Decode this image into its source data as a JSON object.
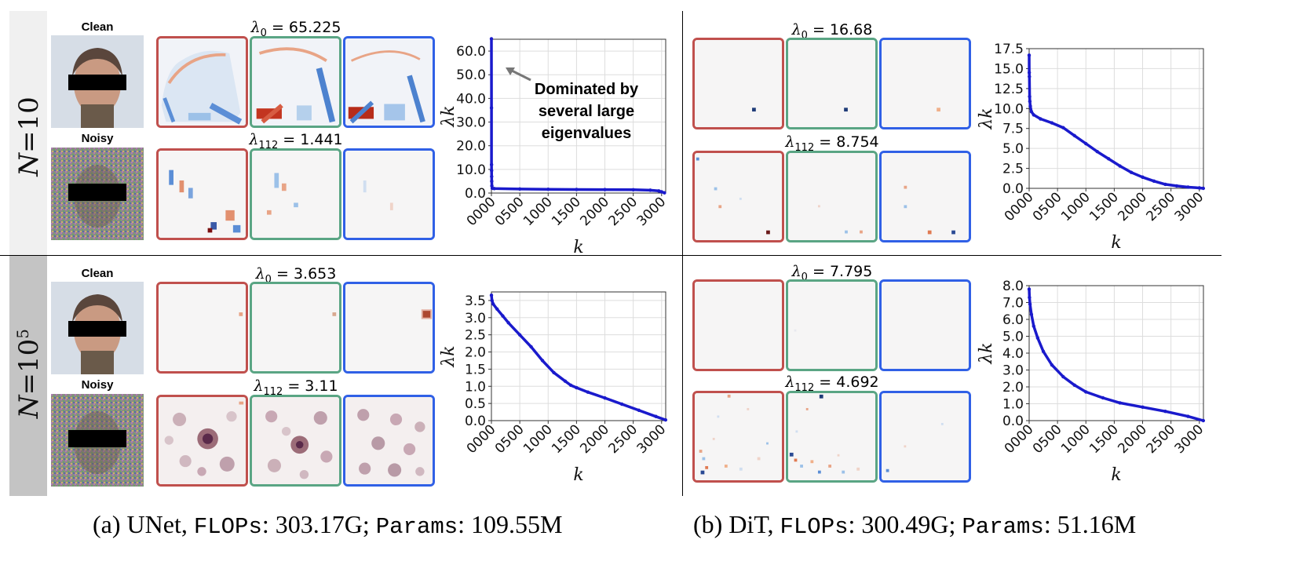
{
  "rows": [
    {
      "label_main": "N",
      "label_eq": "=10",
      "label_sup": ""
    },
    {
      "label_main": "N",
      "label_eq": "=10",
      "label_sup": "5"
    }
  ],
  "image_labels": {
    "clean": "Clean",
    "noisy": "Noisy"
  },
  "unet": {
    "n10": {
      "lambda0": "65.225",
      "lambda112": "1.441"
    },
    "n1e5": {
      "lambda0": "3.653",
      "lambda112": "3.11"
    }
  },
  "dit": {
    "n10": {
      "lambda0": "16.68",
      "lambda112": "8.754"
    },
    "n1e5": {
      "lambda0": "7.795",
      "lambda112": "4.692"
    }
  },
  "lambda_symbol": "λ",
  "lambda_sub0": "0",
  "lambda_sub112": "112",
  "annotation": {
    "line1": "Dominated by",
    "line2": "several large",
    "line3": "eigenvalues"
  },
  "captions": {
    "a_prefix": "(a) UNet, ",
    "a_flops_key": "FLOPs",
    "a_flops_val": ": 303.17G; ",
    "a_params_key": "Params",
    "a_params_val": ": 109.55M",
    "b_prefix": "(b) DiT, ",
    "b_flops_key": "FLOPs",
    "b_flops_val": ": 300.49G; ",
    "b_params_key": "Params",
    "b_params_val": ": 51.16M"
  },
  "colors": {
    "series": "#1a1acc",
    "border_red": "#c0504d",
    "border_green": "#5aa584",
    "border_blue": "#3060e6",
    "row1_tab": "#f0f0f0",
    "row2_tab": "#c4c4c4"
  },
  "chart_data": [
    {
      "type": "scatter",
      "title": "",
      "xlabel": "k",
      "ylabel": "λk",
      "ylim": [
        0,
        65
      ],
      "xlim": [
        0,
        3072
      ],
      "xticks": [
        "0000",
        "0500",
        "1000",
        "1500",
        "2000",
        "2500",
        "3000"
      ],
      "yticks": [
        "0.0",
        "10.0",
        "20.0",
        "30.0",
        "40.0",
        "50.0",
        "60.0"
      ],
      "points": [
        [
          0,
          65.2
        ],
        [
          1,
          36.0
        ],
        [
          2,
          12.0
        ],
        [
          3,
          9.5
        ],
        [
          4,
          7.0
        ],
        [
          5,
          5.0
        ],
        [
          8,
          3.0
        ],
        [
          15,
          2.0
        ],
        [
          50,
          1.9
        ],
        [
          500,
          1.7
        ],
        [
          1000,
          1.6
        ],
        [
          1500,
          1.5
        ],
        [
          2000,
          1.45
        ],
        [
          2500,
          1.4
        ],
        [
          2800,
          1.2
        ],
        [
          2950,
          0.9
        ],
        [
          3000,
          0.5
        ],
        [
          3050,
          0.1
        ]
      ],
      "grid": true
    },
    {
      "type": "scatter",
      "title": "",
      "xlabel": "k",
      "ylabel": "λk",
      "ylim": [
        0,
        17.5
      ],
      "xlim": [
        0,
        3072
      ],
      "xticks": [
        "0000",
        "0500",
        "1000",
        "1500",
        "2000",
        "2500",
        "3000"
      ],
      "yticks": [
        "0.0",
        "2.5",
        "5.0",
        "7.5",
        "10.0",
        "12.5",
        "15.0",
        "17.5"
      ],
      "points": [
        [
          0,
          16.68
        ],
        [
          2,
          14.5
        ],
        [
          4,
          14.0
        ],
        [
          8,
          11.5
        ],
        [
          12,
          10.9
        ],
        [
          20,
          10.3
        ],
        [
          40,
          9.6
        ],
        [
          80,
          9.2
        ],
        [
          200,
          8.7
        ],
        [
          400,
          8.2
        ],
        [
          600,
          7.6
        ],
        [
          800,
          6.6
        ],
        [
          1000,
          5.6
        ],
        [
          1200,
          4.6
        ],
        [
          1400,
          3.7
        ],
        [
          1600,
          2.8
        ],
        [
          1800,
          2.0
        ],
        [
          2000,
          1.4
        ],
        [
          2200,
          0.9
        ],
        [
          2400,
          0.5
        ],
        [
          2600,
          0.3
        ],
        [
          2800,
          0.15
        ],
        [
          3000,
          0.05
        ],
        [
          3070,
          0.0
        ]
      ],
      "grid": true
    },
    {
      "type": "scatter",
      "title": "",
      "xlabel": "k",
      "ylabel": "λk",
      "ylim": [
        0,
        3.75
      ],
      "xlim": [
        0,
        3072
      ],
      "xticks": [
        "0000",
        "0500",
        "1000",
        "1500",
        "2000",
        "2500",
        "3000"
      ],
      "yticks": [
        "0.0",
        "0.5",
        "1.0",
        "1.5",
        "2.0",
        "2.5",
        "3.0",
        "3.5"
      ],
      "points": [
        [
          0,
          3.653
        ],
        [
          10,
          3.5
        ],
        [
          30,
          3.4
        ],
        [
          100,
          3.25
        ],
        [
          200,
          3.05
        ],
        [
          300,
          2.85
        ],
        [
          500,
          2.5
        ],
        [
          700,
          2.15
        ],
        [
          900,
          1.75
        ],
        [
          1100,
          1.4
        ],
        [
          1300,
          1.15
        ],
        [
          1400,
          1.03
        ],
        [
          1500,
          0.96
        ],
        [
          1700,
          0.83
        ],
        [
          2000,
          0.66
        ],
        [
          2300,
          0.48
        ],
        [
          2600,
          0.3
        ],
        [
          2900,
          0.12
        ],
        [
          3070,
          0.02
        ]
      ],
      "grid": true
    },
    {
      "type": "scatter",
      "title": "",
      "xlabel": "k",
      "ylabel": "λk",
      "ylim": [
        0,
        8.0
      ],
      "xlim": [
        0,
        3072
      ],
      "xticks": [
        "0000",
        "0500",
        "1000",
        "1500",
        "2000",
        "2500",
        "3000"
      ],
      "yticks": [
        "0.0",
        "1.0",
        "2.0",
        "3.0",
        "4.0",
        "5.0",
        "6.0",
        "7.0",
        "8.0"
      ],
      "points": [
        [
          0,
          7.795
        ],
        [
          5,
          7.3
        ],
        [
          15,
          6.9
        ],
        [
          40,
          6.3
        ],
        [
          80,
          5.6
        ],
        [
          150,
          4.9
        ],
        [
          250,
          4.1
        ],
        [
          400,
          3.3
        ],
        [
          600,
          2.6
        ],
        [
          800,
          2.1
        ],
        [
          1000,
          1.7
        ],
        [
          1300,
          1.35
        ],
        [
          1600,
          1.05
        ],
        [
          2000,
          0.8
        ],
        [
          2400,
          0.55
        ],
        [
          2800,
          0.25
        ],
        [
          3070,
          0.0
        ]
      ],
      "grid": true
    }
  ]
}
